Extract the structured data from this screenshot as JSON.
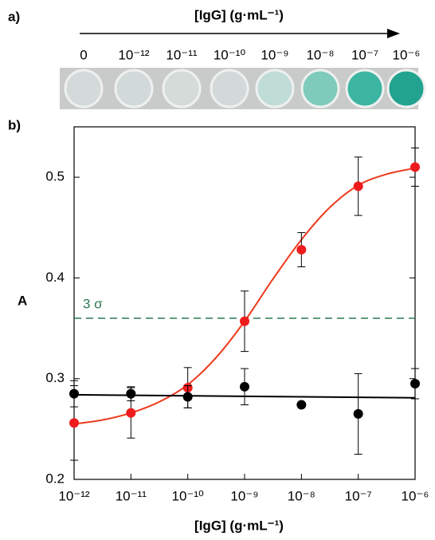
{
  "panel_a": {
    "label": "a)",
    "title": "[IgG] (g·mL⁻¹)",
    "wells": [
      "0",
      "10⁻¹²",
      "10⁻¹¹",
      "10⁻¹⁰",
      "10⁻⁹",
      "10⁻⁸",
      "10⁻⁷",
      "10⁻⁶"
    ]
  },
  "chart_data": {
    "type": "scatter",
    "panel_label": "b)",
    "ylabel": "A",
    "xlabel": "[IgG] (g·mL⁻¹)",
    "xscale": "log",
    "xlim": [
      1e-12,
      1e-06
    ],
    "xticks": [
      {
        "value": 1e-12,
        "label": "10⁻¹²"
      },
      {
        "value": 1e-11,
        "label": "10⁻¹¹"
      },
      {
        "value": 1e-10,
        "label": "10⁻¹⁰"
      },
      {
        "value": 1e-09,
        "label": "10⁻⁹"
      },
      {
        "value": 1e-08,
        "label": "10⁻⁸"
      },
      {
        "value": 1e-07,
        "label": "10⁻⁷"
      },
      {
        "value": 1e-06,
        "label": "10⁻⁶"
      }
    ],
    "ylim": [
      0.2,
      0.55
    ],
    "yticks": [
      0.2,
      0.3,
      0.4,
      0.5
    ],
    "series": [
      {
        "kind": "points",
        "color": "#ee1c1c",
        "x": [
          1e-12,
          1e-11,
          1e-10,
          1e-09,
          1e-08,
          1e-07,
          1e-06
        ],
        "values": [
          0.256,
          0.266,
          0.291,
          0.357,
          0.428,
          0.491,
          0.51
        ],
        "errors": [
          0.037,
          0.025,
          0.02,
          0.03,
          0.017,
          0.029,
          0.019
        ]
      },
      {
        "kind": "points",
        "color": "#000000",
        "x": [
          1e-12,
          1e-11,
          1e-10,
          1e-09,
          1e-08,
          1e-07,
          1e-06
        ],
        "values": [
          0.285,
          0.285,
          0.282,
          0.292,
          0.274,
          0.265,
          0.295
        ],
        "errors": [
          0.013,
          0.007,
          0.011,
          0.018,
          null,
          0.04,
          0.015
        ]
      },
      {
        "kind": "line",
        "color": "#ee3a1c",
        "x": [
          1e-12,
          3.162e-12,
          1e-11,
          3.162e-11,
          1e-10,
          3.162e-10,
          1e-09,
          3.162e-09,
          1e-08,
          3.162e-08,
          1e-07,
          3.162e-07,
          1e-06
        ],
        "values": [
          0.255,
          0.259,
          0.266,
          0.277,
          0.294,
          0.321,
          0.357,
          0.399,
          0.438,
          0.47,
          0.492,
          0.503,
          0.509
        ]
      },
      {
        "kind": "line",
        "color": "#000000",
        "x": [
          1e-12,
          1e-06
        ],
        "values": [
          0.284,
          0.281
        ]
      }
    ],
    "threshold": {
      "value": 0.36,
      "label": "3 σ",
      "color": "#2a7a52"
    }
  }
}
